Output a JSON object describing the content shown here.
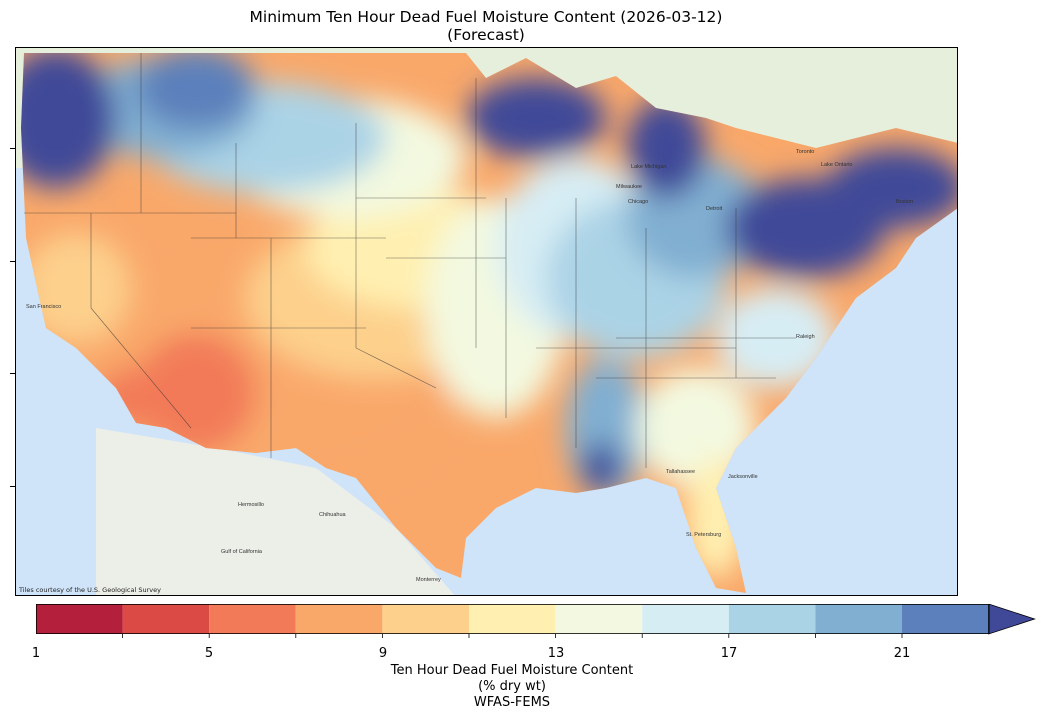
{
  "title_line1": "Minimum Ten Hour Dead Fuel Moisture Content (2026-03-12)",
  "title_line2": "(Forecast)",
  "attribution": "Tiles courtesy of the U.S. Geological Survey",
  "map_labels": {
    "milwaukee": "Milwaukee",
    "chicago": "Chicago",
    "detroit": "Detroit",
    "toronto": "Toronto",
    "lake_ontario": "Lake Ontario",
    "lake_michigan": "Lake Michigan",
    "boston": "Boston",
    "gulf_of_california": "Gulf of California",
    "hermosillo": "Hermosillo",
    "chihuahua": "Chihuahua",
    "monterrey": "Monterrey",
    "jacksonville": "Jacksonville",
    "tallahassee": "Tallahassee",
    "st_petersburg": "St. Petersburg",
    "raleigh": "Raleigh",
    "san_francisco": "San Francisco"
  },
  "colorbar": {
    "ticks": [
      "1",
      "5",
      "9",
      "13",
      "17",
      "21"
    ],
    "label_line1": "Ten Hour Dead Fuel Moisture Content",
    "label_line2": "(% dry wt)",
    "label_line3": "WFAS-FEMS",
    "colors": [
      "#b41f3c",
      "#dc4a45",
      "#f27a59",
      "#f9a86a",
      "#fdd08c",
      "#fff0b1",
      "#f3f9e0",
      "#d7edf4",
      "#abd3e6",
      "#81afd1",
      "#5c80bb"
    ],
    "extend_color": "#404898"
  }
}
